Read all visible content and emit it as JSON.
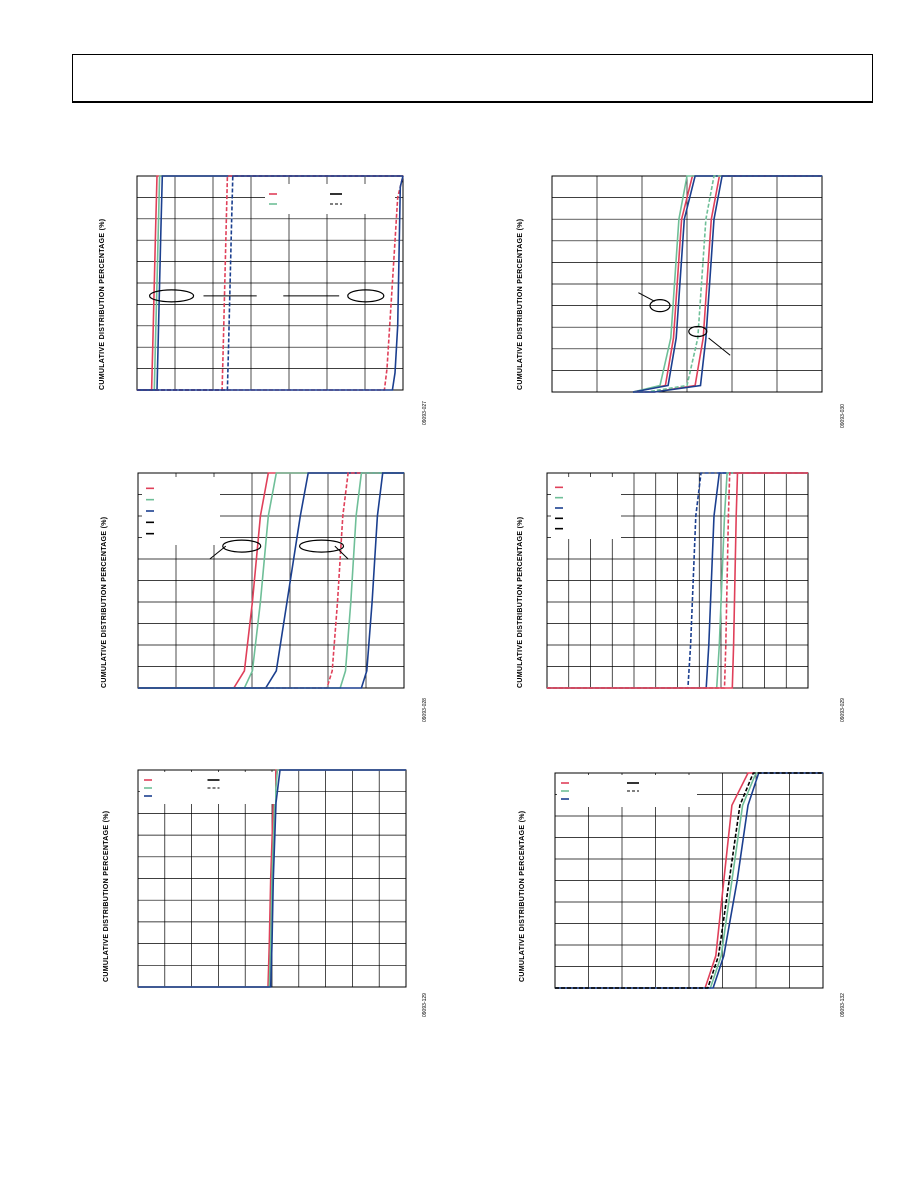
{
  "header": {
    "text": ""
  },
  "colors": {
    "red": "#e0405a",
    "green": "#6fbf98",
    "blue": "#1b3f8f",
    "black": "#000000"
  },
  "chart_data": [
    {
      "type": "line",
      "ylabel": "CUMULATIVE DISTRIBUTION PERCENTAGE (%)",
      "figure_id": "09093-027",
      "x_range": [
        0,
        10
      ],
      "ylim": [
        0,
        100
      ],
      "grid": true,
      "legend": {
        "position": "top-right",
        "entries": 5
      },
      "series": [
        {
          "color": "red",
          "dash": false,
          "x": [
            0.55,
            0.6,
            0.65,
            0.7,
            0.75
          ],
          "y": [
            0,
            25,
            50,
            75,
            100
          ]
        },
        {
          "color": "green",
          "dash": false,
          "x": [
            0.65,
            0.7,
            0.75,
            0.8,
            0.85
          ],
          "y": [
            0,
            25,
            50,
            75,
            100
          ]
        },
        {
          "color": "blue",
          "dash": false,
          "x": [
            0.75,
            0.8,
            0.85,
            0.9,
            0.95
          ],
          "y": [
            0,
            25,
            50,
            75,
            100
          ]
        },
        {
          "color": "red",
          "dash": true,
          "x": [
            3.2,
            3.25,
            3.3,
            3.35,
            3.4
          ],
          "y": [
            0,
            25,
            50,
            75,
            100
          ]
        },
        {
          "color": "blue",
          "dash": true,
          "x": [
            3.4,
            3.45,
            3.5,
            3.55,
            3.6
          ],
          "y": [
            0,
            25,
            50,
            75,
            100
          ]
        },
        {
          "color": "red",
          "dash": true,
          "x": [
            9.3,
            9.4,
            9.6,
            9.8,
            10.0
          ],
          "y": [
            0,
            10,
            50,
            90,
            100
          ]
        },
        {
          "color": "blue",
          "dash": false,
          "x": [
            9.6,
            9.7,
            9.8,
            9.9,
            10.0
          ],
          "y": [
            0,
            8,
            30,
            95,
            100
          ]
        }
      ],
      "annotations": 2
    },
    {
      "type": "line",
      "ylabel": "CUMULATIVE DISTRIBUTION PERCENTAGE (%)",
      "figure_id": "09093-030",
      "x_range": [
        0,
        10
      ],
      "ylim": [
        0,
        100
      ],
      "grid": true,
      "series": [
        {
          "color": "red",
          "dash": false,
          "x": [
            3.0,
            4.2,
            4.5,
            4.8,
            5.2
          ],
          "y": [
            0,
            3,
            25,
            80,
            100
          ]
        },
        {
          "color": "green",
          "dash": false,
          "x": [
            3.0,
            4.0,
            4.4,
            4.7,
            5.0
          ],
          "y": [
            0,
            3,
            25,
            80,
            100
          ]
        },
        {
          "color": "blue",
          "dash": false,
          "x": [
            3.0,
            4.3,
            4.6,
            4.9,
            5.3
          ],
          "y": [
            0,
            3,
            25,
            80,
            100
          ]
        },
        {
          "color": "red",
          "dash": false,
          "x": [
            3.8,
            5.3,
            5.6,
            5.9,
            6.2
          ],
          "y": [
            0,
            3,
            25,
            80,
            100
          ]
        },
        {
          "color": "green",
          "dash": true,
          "x": [
            3.5,
            5.0,
            5.4,
            5.7,
            6.0
          ],
          "y": [
            0,
            3,
            25,
            80,
            100
          ]
        },
        {
          "color": "blue",
          "dash": false,
          "x": [
            3.8,
            5.5,
            5.7,
            6.0,
            6.3
          ],
          "y": [
            0,
            3,
            25,
            80,
            100
          ]
        }
      ],
      "annotations": 2
    },
    {
      "type": "line",
      "ylabel": "CUMULATIVE DISTRIBUTION PERCENTAGE (%)",
      "figure_id": "09093-028",
      "x_range": [
        0,
        10
      ],
      "ylim": [
        0,
        100
      ],
      "grid": true,
      "legend": {
        "position": "top-left",
        "entries": 5
      },
      "series": [
        {
          "color": "red",
          "dash": false,
          "x": [
            3.6,
            4.0,
            4.3,
            4.6,
            4.9
          ],
          "y": [
            0,
            8,
            40,
            80,
            100
          ]
        },
        {
          "color": "green",
          "dash": false,
          "x": [
            4.0,
            4.3,
            4.6,
            4.9,
            5.2
          ],
          "y": [
            0,
            8,
            40,
            80,
            100
          ]
        },
        {
          "color": "blue",
          "dash": false,
          "x": [
            4.8,
            5.2,
            5.6,
            6.1,
            6.4
          ],
          "y": [
            0,
            8,
            40,
            80,
            100
          ]
        },
        {
          "color": "red",
          "dash": true,
          "x": [
            7.1,
            7.3,
            7.5,
            7.7,
            7.9
          ],
          "y": [
            0,
            8,
            40,
            80,
            100
          ]
        },
        {
          "color": "green",
          "dash": false,
          "x": [
            7.6,
            7.8,
            8.0,
            8.2,
            8.4
          ],
          "y": [
            0,
            8,
            40,
            80,
            100
          ]
        },
        {
          "color": "blue",
          "dash": false,
          "x": [
            8.4,
            8.6,
            8.8,
            9.0,
            9.2
          ],
          "y": [
            0,
            8,
            40,
            80,
            100
          ]
        }
      ],
      "annotations": 2
    },
    {
      "type": "line",
      "ylabel": "CUMULATIVE DISTRIBUTION PERCENTAGE (%)",
      "figure_id": "09093-029",
      "x_range": [
        0,
        10
      ],
      "ylim": [
        0,
        100
      ],
      "grid": true,
      "legend": {
        "position": "top-left",
        "entries": 5
      },
      "series": [
        {
          "color": "blue",
          "dash": true,
          "x": [
            5.4,
            5.5,
            5.6,
            5.7,
            5.9
          ],
          "y": [
            0,
            20,
            50,
            80,
            100
          ]
        },
        {
          "color": "blue",
          "dash": false,
          "x": [
            6.1,
            6.2,
            6.3,
            6.4,
            6.6
          ],
          "y": [
            0,
            20,
            50,
            80,
            100
          ]
        },
        {
          "color": "green",
          "dash": false,
          "x": [
            6.5,
            6.6,
            6.7,
            6.8,
            6.9
          ],
          "y": [
            0,
            20,
            50,
            80,
            100
          ]
        },
        {
          "color": "red",
          "dash": false,
          "x": [
            7.1,
            7.15,
            7.2,
            7.25,
            7.3
          ],
          "y": [
            0,
            20,
            50,
            80,
            100
          ]
        },
        {
          "color": "red",
          "dash": true,
          "x": [
            6.8,
            6.85,
            6.9,
            6.95,
            7.0
          ],
          "y": [
            0,
            20,
            50,
            80,
            100
          ]
        }
      ]
    },
    {
      "type": "line",
      "ylabel": "CUMULATIVE DISTRIBUTION PERCENTAGE (%)",
      "figure_id": "09093-129",
      "x_range": [
        0,
        10
      ],
      "ylim": [
        0,
        100
      ],
      "grid": true,
      "legend": {
        "position": "top-left",
        "entries": 5
      },
      "series": [
        {
          "color": "red",
          "dash": false,
          "x": [
            4.85,
            4.9,
            4.95,
            5.05,
            5.15
          ],
          "y": [
            0,
            20,
            50,
            85,
            100
          ]
        },
        {
          "color": "green",
          "dash": false,
          "x": [
            4.9,
            4.95,
            5.0,
            5.1,
            5.2
          ],
          "y": [
            0,
            20,
            50,
            85,
            100
          ]
        },
        {
          "color": "blue",
          "dash": false,
          "x": [
            4.95,
            5.0,
            5.05,
            5.15,
            5.3
          ],
          "y": [
            0,
            20,
            50,
            85,
            100
          ]
        }
      ]
    },
    {
      "type": "line",
      "ylabel": "CUMULATIVE DISTRIBUTION PERCENTAGE (%)",
      "figure_id": "09093-132",
      "x_range": [
        0,
        10
      ],
      "ylim": [
        0,
        100
      ],
      "grid": true,
      "legend": {
        "position": "top-left",
        "entries": 5
      },
      "series": [
        {
          "color": "red",
          "dash": false,
          "x": [
            5.6,
            6.0,
            6.3,
            6.6,
            7.2
          ],
          "y": [
            0,
            15,
            50,
            85,
            100
          ]
        },
        {
          "color": "green",
          "dash": false,
          "x": [
            5.8,
            6.2,
            6.6,
            7.0,
            7.5
          ],
          "y": [
            0,
            15,
            50,
            85,
            100
          ]
        },
        {
          "color": "blue",
          "dash": false,
          "x": [
            5.9,
            6.3,
            6.8,
            7.2,
            7.6
          ],
          "y": [
            0,
            15,
            50,
            85,
            100
          ]
        },
        {
          "color": "black",
          "dash": true,
          "x": [
            5.7,
            6.1,
            6.5,
            6.9,
            7.4
          ],
          "y": [
            0,
            15,
            50,
            85,
            100
          ]
        }
      ]
    }
  ]
}
